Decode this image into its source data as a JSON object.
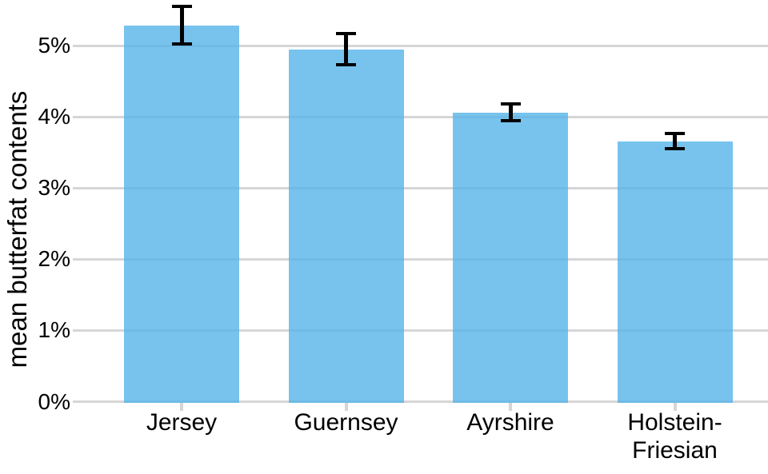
{
  "chart_data": {
    "type": "bar",
    "title": "",
    "xlabel": "",
    "ylabel": "mean butterfat contents",
    "categories": [
      "Jersey",
      "Guernsey",
      "Ayrshire",
      "Holstein-Friesian"
    ],
    "values": [
      5.29,
      4.95,
      4.06,
      3.66
    ],
    "error_low": [
      5.03,
      4.73,
      3.95,
      3.56
    ],
    "error_high": [
      5.55,
      5.17,
      4.18,
      3.77
    ],
    "ylim": [
      0,
      5.65
    ],
    "yticks": [
      0,
      1,
      2,
      3,
      4,
      5
    ],
    "ytick_labels": [
      "0%",
      "1%",
      "2%",
      "3%",
      "4%",
      "5%"
    ],
    "grid": true,
    "legend_position": "none",
    "colors": {
      "bar_fill": "#56B4E9",
      "bar_opacity": 0.8,
      "grid": "#D6D6D6",
      "axis": "#D6D6D6",
      "error_bar": "#000000",
      "text": "#000000",
      "background": "#FFFFFF"
    }
  }
}
